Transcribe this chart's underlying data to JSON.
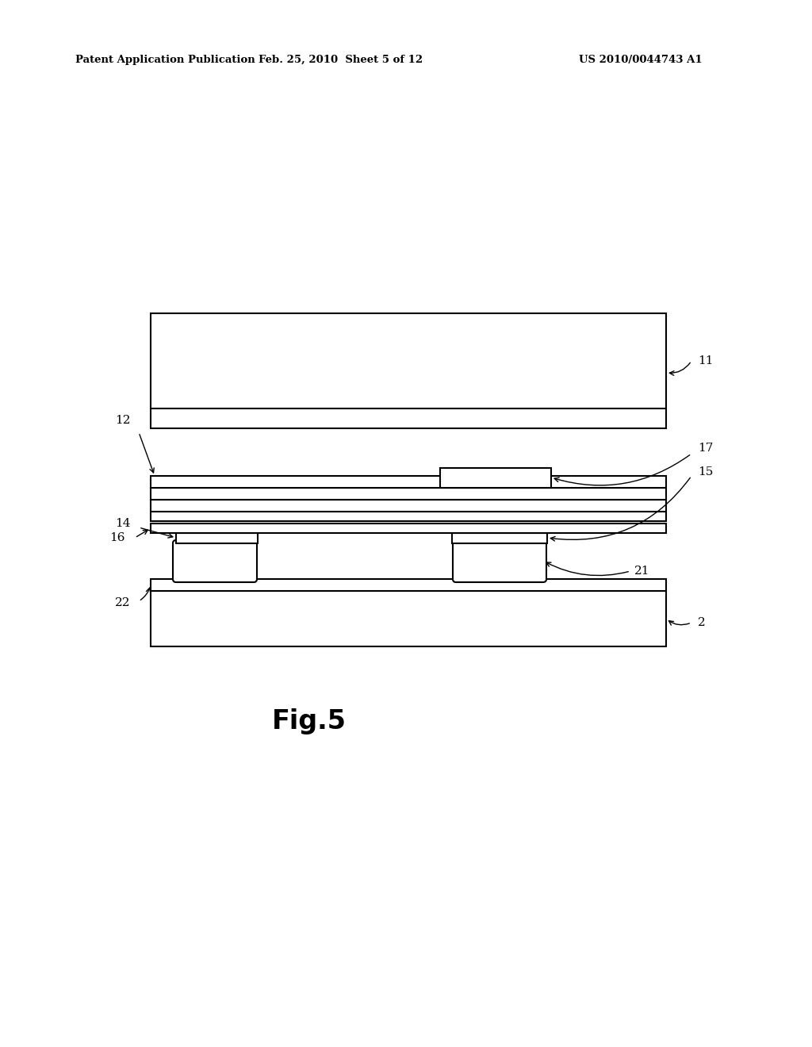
{
  "bg_color": "#ffffff",
  "line_color": "#000000",
  "lw": 1.5,
  "header_left": "Patent Application Publication",
  "header_mid": "Feb. 25, 2010  Sheet 5 of 12",
  "header_right": "US 2010/0044743 A1",
  "fig_label": "Fig.5"
}
